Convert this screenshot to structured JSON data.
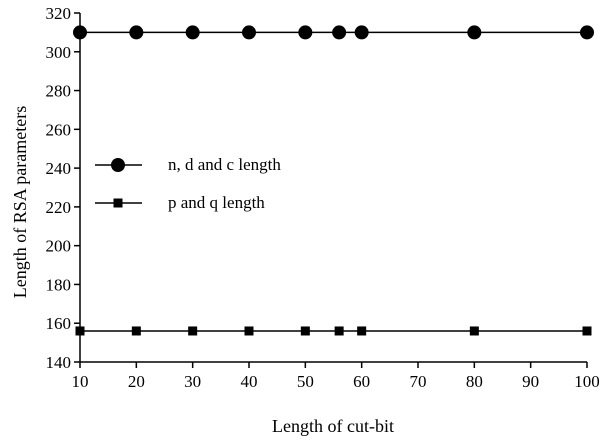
{
  "chart_data": {
    "type": "line",
    "title": "",
    "xlabel": "Length of cut-bit",
    "ylabel": "Length of RSA parameters",
    "xlim": [
      10,
      100
    ],
    "ylim": [
      140,
      320
    ],
    "xticks": [
      10,
      20,
      30,
      40,
      50,
      60,
      70,
      80,
      90,
      100
    ],
    "yticks": [
      140,
      160,
      180,
      200,
      220,
      240,
      260,
      280,
      300,
      320
    ],
    "grid": false,
    "legend_position": "center-left",
    "x": [
      10,
      20,
      30,
      40,
      50,
      56,
      60,
      80,
      100
    ],
    "series": [
      {
        "name": "n, d and c length",
        "marker": "circle",
        "color": "#000000",
        "values": [
          310,
          310,
          310,
          310,
          310,
          310,
          310,
          310,
          310
        ]
      },
      {
        "name": "p and q length",
        "marker": "square",
        "color": "#000000",
        "values": [
          156,
          156,
          156,
          156,
          156,
          156,
          156,
          156,
          156
        ]
      }
    ]
  }
}
